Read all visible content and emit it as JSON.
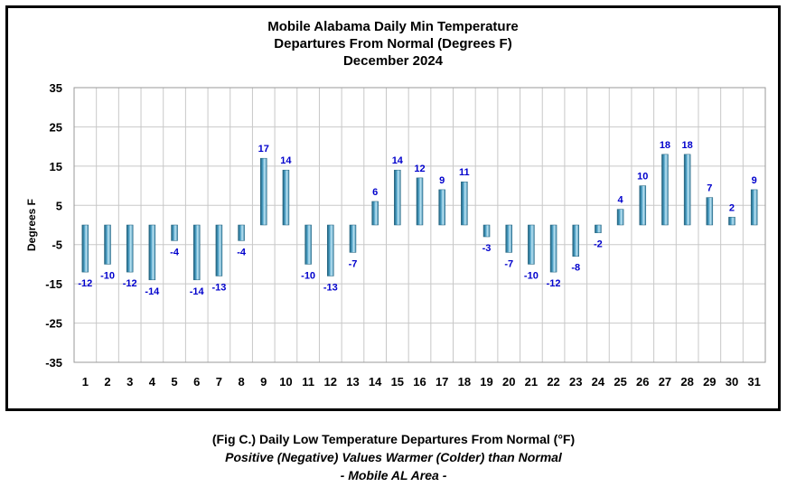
{
  "chart_data": {
    "type": "bar",
    "title_lines": [
      "Mobile Alabama Daily Min Temperature",
      "Departures From Normal (Degrees F)",
      "December 2024"
    ],
    "xlabel": "",
    "ylabel": "Degrees F",
    "ylim": [
      -35,
      35
    ],
    "yticks": [
      35,
      25,
      15,
      5,
      -5,
      -15,
      -25,
      -35
    ],
    "categories": [
      "1",
      "2",
      "3",
      "4",
      "5",
      "6",
      "7",
      "8",
      "9",
      "10",
      "11",
      "12",
      "13",
      "14",
      "15",
      "16",
      "17",
      "18",
      "19",
      "20",
      "21",
      "22",
      "23",
      "24",
      "25",
      "26",
      "27",
      "28",
      "29",
      "30",
      "31"
    ],
    "values": [
      -12,
      -10,
      -12,
      -14,
      -4,
      -14,
      -13,
      -4,
      17,
      14,
      -10,
      -13,
      -7,
      6,
      14,
      12,
      9,
      11,
      -3,
      -7,
      -10,
      -12,
      -8,
      -2,
      4,
      10,
      18,
      18,
      7,
      2,
      9
    ],
    "grid": true,
    "colors": {
      "bar_dark": "#1f5f7a",
      "bar_mid": "#4a9ec4",
      "bar_light": "#bfe6f5",
      "label": "#0000cc",
      "grid": "#c8c8c8"
    }
  },
  "caption": {
    "line1": "(Fig C.) Daily Low Temperature Departures From Normal (°F)",
    "line2": "Positive (Negative) Values Warmer (Colder) than Normal",
    "line3": "- Mobile AL Area -"
  }
}
